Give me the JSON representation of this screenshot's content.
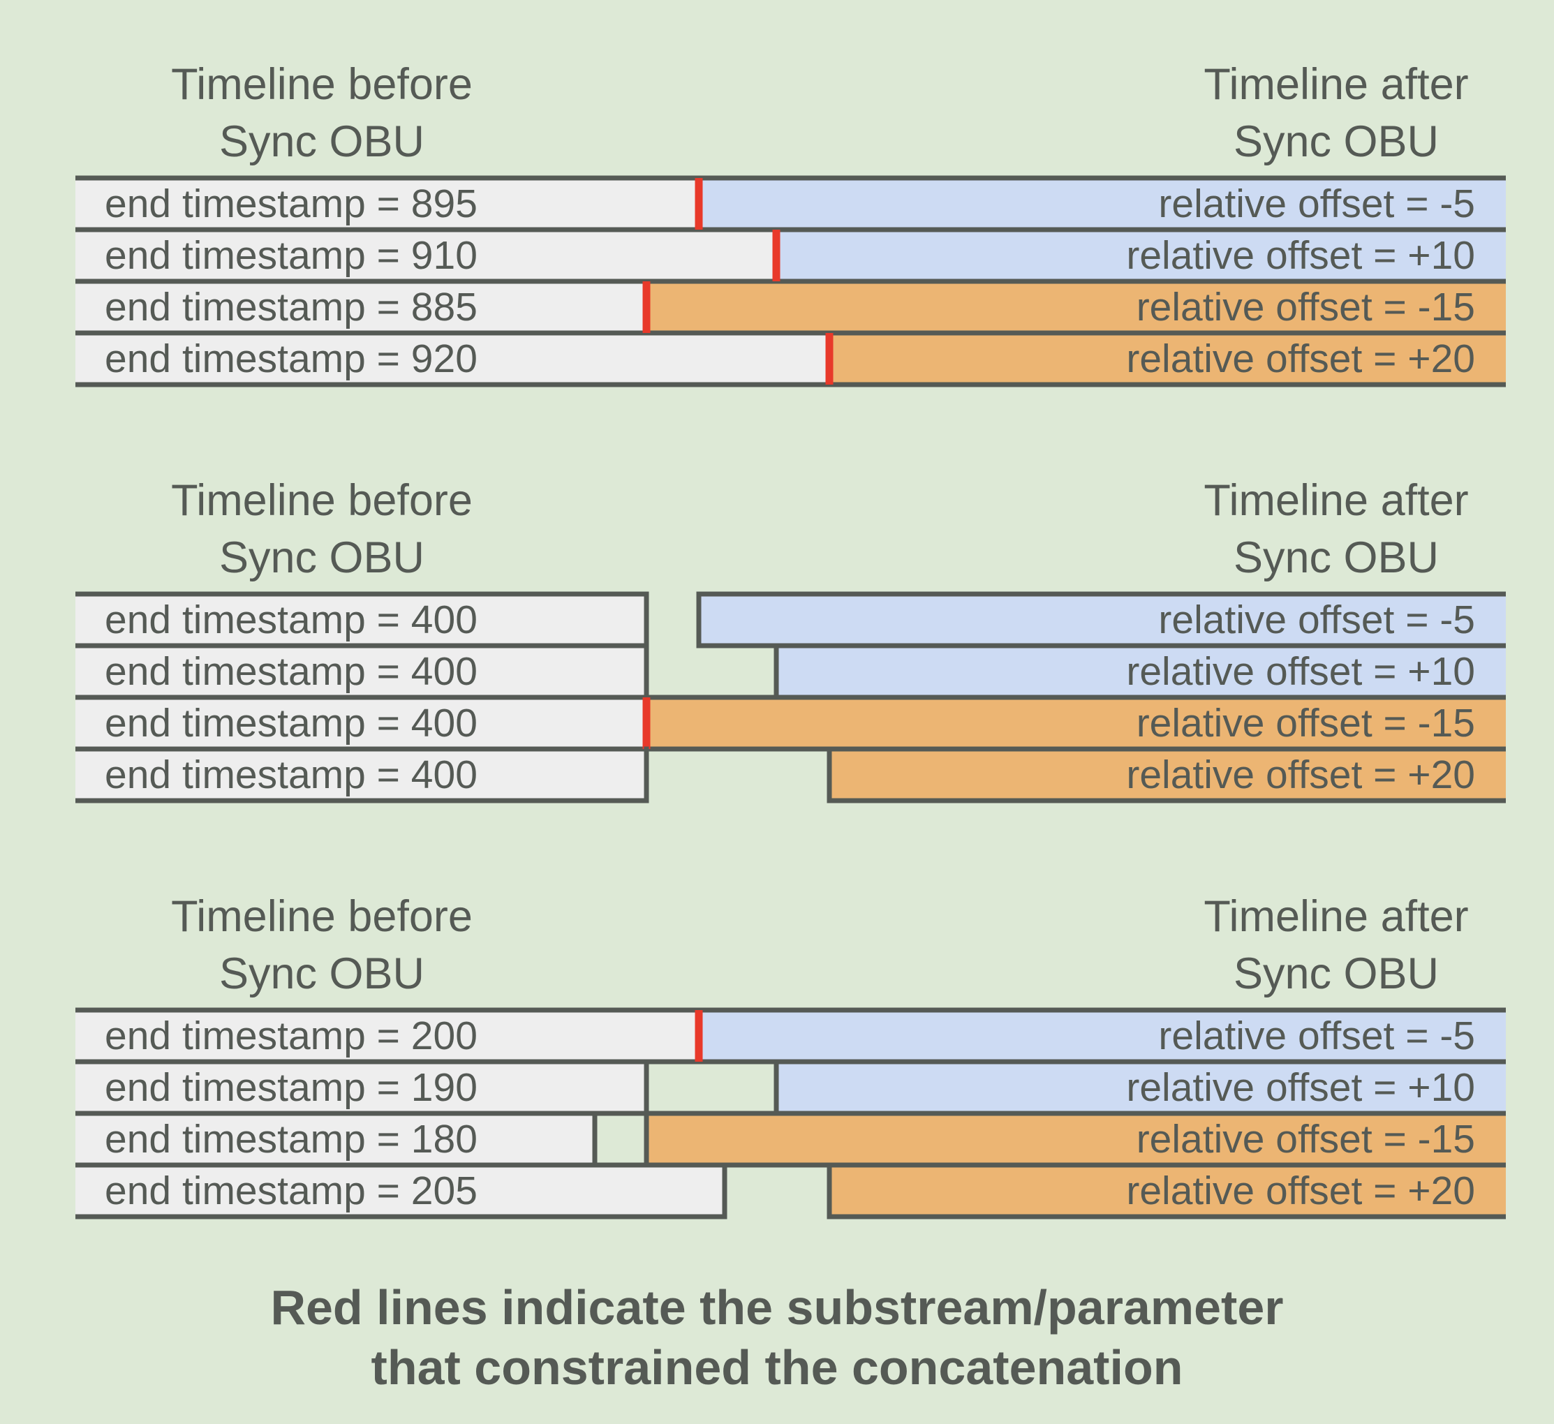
{
  "panels": [
    {
      "before_title": [
        "Timeline before",
        "Sync OBU"
      ],
      "after_title": [
        "Timeline after",
        "Sync OBU"
      ],
      "rows": [
        {
          "before": "end timestamp = 895",
          "after": "relative offset = -5",
          "type": "blue"
        },
        {
          "before": "end timestamp = 910",
          "after": "relative offset = +10",
          "type": "blue"
        },
        {
          "before": "end timestamp = 885",
          "after": "relative offset = -15",
          "type": "orange"
        },
        {
          "before": "end timestamp = 920",
          "after": "relative offset = +20",
          "type": "orange"
        }
      ],
      "constraining_rows": [
        0,
        1,
        2,
        3
      ]
    },
    {
      "before_title": [
        "Timeline before",
        "Sync OBU"
      ],
      "after_title": [
        "Timeline after",
        "Sync OBU"
      ],
      "rows": [
        {
          "before": "end timestamp = 400",
          "after": "relative offset = -5",
          "type": "blue"
        },
        {
          "before": "end timestamp = 400",
          "after": "relative offset = +10",
          "type": "blue"
        },
        {
          "before": "end timestamp = 400",
          "after": "relative offset = -15",
          "type": "orange"
        },
        {
          "before": "end timestamp = 400",
          "after": "relative offset = +20",
          "type": "orange"
        }
      ],
      "constraining_rows": [
        2
      ]
    },
    {
      "before_title": [
        "Timeline before",
        "Sync OBU"
      ],
      "after_title": [
        "Timeline after",
        "Sync OBU"
      ],
      "rows": [
        {
          "before": "end timestamp = 200",
          "after": "relative offset = -5",
          "type": "blue"
        },
        {
          "before": "end timestamp = 190",
          "after": "relative offset = +10",
          "type": "blue"
        },
        {
          "before": "end timestamp = 180",
          "after": "relative offset = -15",
          "type": "orange"
        },
        {
          "before": "end timestamp = 205",
          "after": "relative offset = +20",
          "type": "orange"
        }
      ],
      "constraining_rows": [
        0
      ]
    }
  ],
  "caption": [
    "Red lines indicate the substream/parameter",
    "that constrained the concatenation"
  ],
  "colors": {
    "background": "#dde9d6",
    "before_fill": "#eeeeee",
    "blue_fill": "#cddbf3",
    "orange_fill": "#ecb573",
    "stroke": "#555a55",
    "red": "#e8392a",
    "text": "#555a55"
  }
}
